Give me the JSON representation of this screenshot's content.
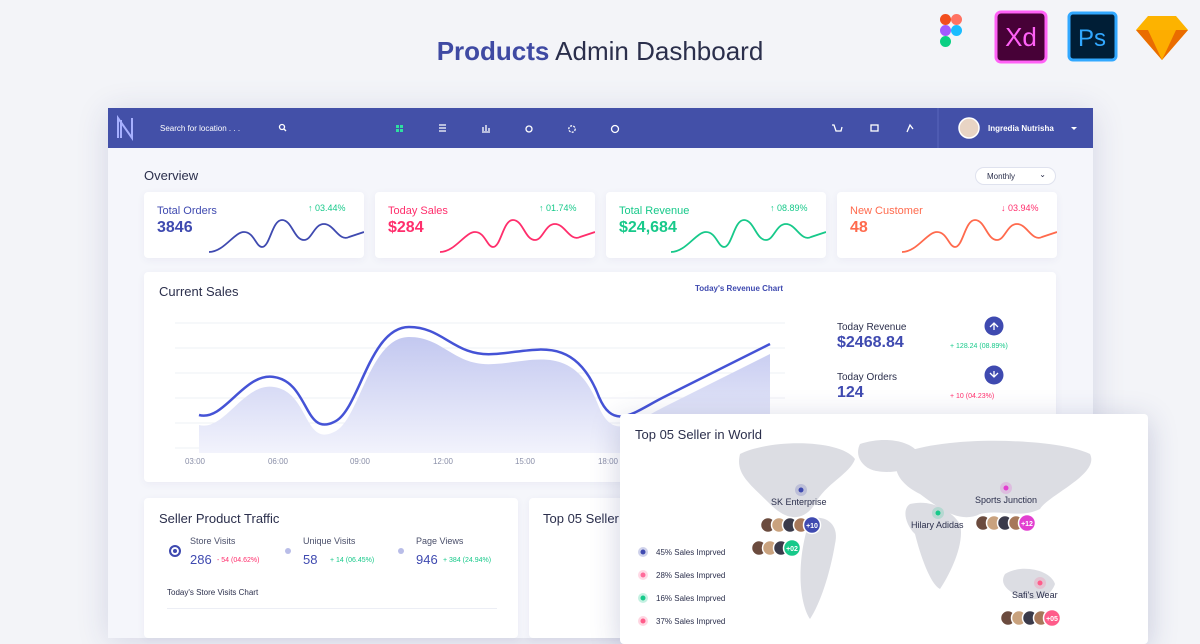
{
  "header": {
    "title_bold": "Products",
    "title_rest": "Admin Dashboard",
    "tools": [
      "Xd",
      "Ps"
    ]
  },
  "navbar": {
    "search": "Search for location . . .",
    "user": "Ingredia Nutrisha"
  },
  "overview": {
    "title": "Overview",
    "period": "Monthly",
    "cards": [
      {
        "label": "Total Orders",
        "value": "3846",
        "change": "↑ 03.44%",
        "color": "#3f4ab0",
        "change_color": "#17c98a"
      },
      {
        "label": "Today Sales",
        "value": "$284",
        "change": "↑ 01.74%",
        "color": "#ff2e6c",
        "change_color": "#17c98a"
      },
      {
        "label": "Total Revenue",
        "value": "$24,684",
        "change": "↑ 08.89%",
        "color": "#17c98a",
        "change_color": "#17c98a"
      },
      {
        "label": "New Customer",
        "value": "48",
        "change": "↓ 03.94%",
        "color": "#ff6a4d",
        "change_color": "#ff2e6c"
      }
    ]
  },
  "current_sales": {
    "title": "Current Sales",
    "chart_label": "Today's Revenue Chart",
    "x_labels": [
      "03:00",
      "06:00",
      "09:00",
      "12:00",
      "15:00",
      "18:00"
    ],
    "stats": [
      {
        "label": "Today Revenue",
        "value": "$2468.84",
        "change": "+ 128.24 (08.89%)",
        "change_color": "#17c98a"
      },
      {
        "label": "Today Orders",
        "value": "124",
        "change": "+ 10 (04.23%)",
        "change_color": "#ff2e6c"
      }
    ]
  },
  "traffic": {
    "title": "Seller Product Traffic",
    "chart_label": "Today's Store Visits Chart",
    "stats": [
      {
        "label": "Store Visits",
        "value": "286",
        "change": "- 54 (04.62%)",
        "change_color": "#ff2e6c"
      },
      {
        "label": "Unique Visits",
        "value": "58",
        "change": "+ 14 (06.45%)",
        "change_color": "#17c98a"
      },
      {
        "label": "Page Views",
        "value": "946",
        "change": "+ 384 (24.94%)",
        "change_color": "#17c98a"
      }
    ]
  },
  "top_sellers": {
    "title": "Top 05 Seller"
  },
  "world": {
    "title": "Top 05 Seller in World",
    "legend": [
      {
        "text": "45% Sales Imprved",
        "color": "#3f4ab0"
      },
      {
        "text": "28% Sales Imprved",
        "color": "#ff6b9a"
      },
      {
        "text": "16% Sales Imprved",
        "color": "#17c98a"
      },
      {
        "text": "37% Sales Imprved",
        "color": "#ff5c8a"
      }
    ],
    "sellers": [
      {
        "name": "SK Enterprise",
        "more": "+10",
        "color": "#3f4ab0"
      },
      {
        "name": "Hilary Adidas",
        "more": "+02",
        "color": "#17c98a"
      },
      {
        "name": "Sports Junction",
        "more": "+12",
        "color": "#e23fd0"
      },
      {
        "name": "Safi's Wear",
        "more": "+05",
        "color": "#ff5c8a"
      }
    ]
  }
}
